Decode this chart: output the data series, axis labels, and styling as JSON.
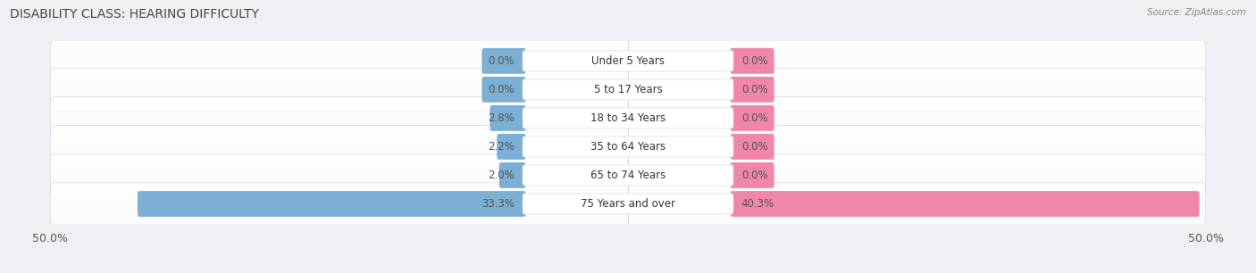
{
  "title": "DISABILITY CLASS: HEARING DIFFICULTY",
  "source_text": "Source: ZipAtlas.com",
  "categories": [
    "Under 5 Years",
    "5 to 17 Years",
    "18 to 34 Years",
    "35 to 64 Years",
    "65 to 74 Years",
    "75 Years and over"
  ],
  "male_values": [
    0.0,
    0.0,
    2.8,
    2.2,
    2.0,
    33.3
  ],
  "female_values": [
    0.0,
    0.0,
    0.0,
    0.0,
    0.0,
    40.3
  ],
  "male_color": "#7bafd4",
  "female_color": "#f087aa",
  "row_bg_color": "#e8e8ee",
  "row_border_color": "#d0d0d8",
  "axis_min": -50.0,
  "axis_max": 50.0,
  "title_fontsize": 10,
  "label_fontsize": 8.5,
  "value_fontsize": 8.5,
  "tick_fontsize": 9,
  "min_bar_val": 3.5
}
